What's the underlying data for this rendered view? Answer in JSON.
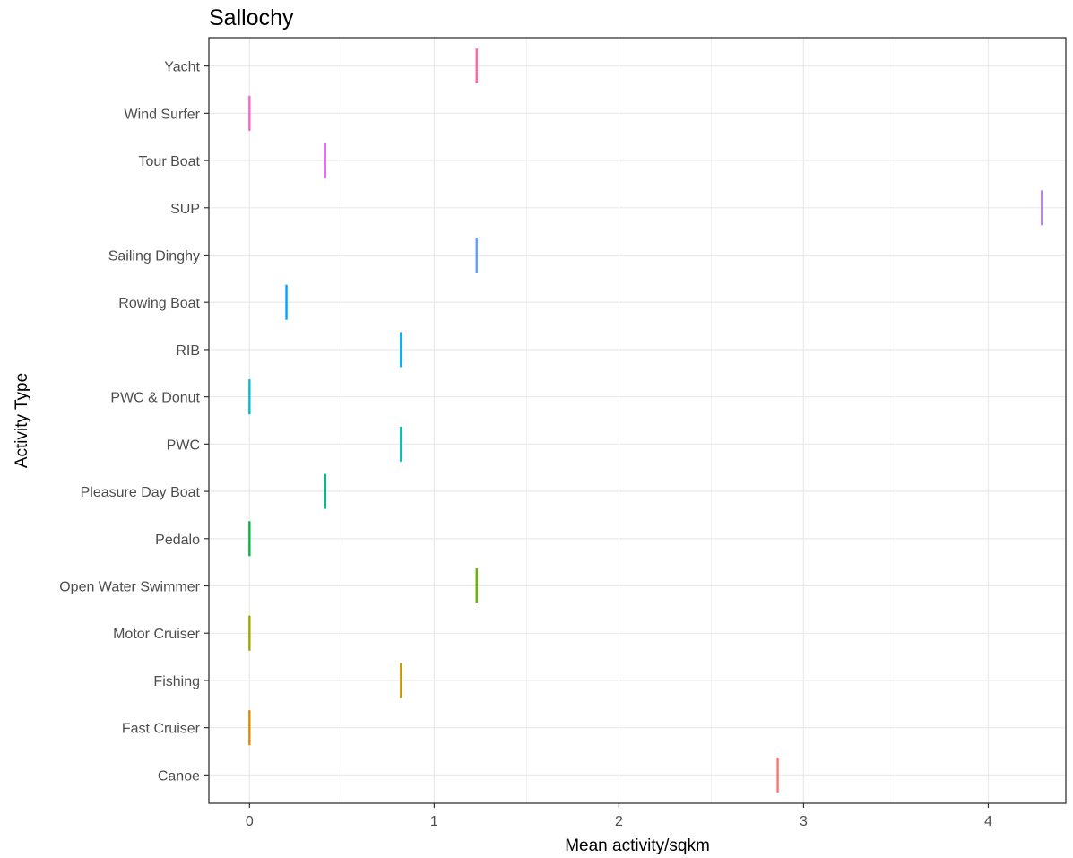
{
  "chart_data": {
    "type": "errorbar",
    "title": "Sallochy",
    "xlabel": "Mean activity/sqkm",
    "ylabel": "Activity Type",
    "xlim": [
      -0.22,
      4.42
    ],
    "x_ticks": [
      0,
      1,
      2,
      3,
      4
    ],
    "x_tick_labels": [
      "0",
      "1",
      "2",
      "3",
      "4"
    ],
    "grid": true,
    "legend": "none",
    "categories": [
      "Canoe",
      "Fast Cruiser",
      "Fishing",
      "Motor Cruiser",
      "Open Water Swimmer",
      "Pedalo",
      "Pleasure Day Boat",
      "PWC",
      "PWC & Donut",
      "RIB",
      "Rowing Boat",
      "Sailing Dinghy",
      "SUP",
      "Tour Boat",
      "Wind Surfer",
      "Yacht"
    ],
    "values": [
      2.86,
      0,
      0.82,
      0,
      1.23,
      0,
      0.41,
      0.82,
      0,
      0.82,
      0.2,
      1.23,
      4.29,
      0.41,
      0,
      1.23
    ],
    "colors": [
      "#F8766D",
      "#E58700",
      "#C99800",
      "#A3A500",
      "#6BB100",
      "#00BA38",
      "#00BF7D",
      "#00C0AF",
      "#00BCD8",
      "#00B0F6",
      "#00A2FF",
      "#619CFF",
      "#B983FF",
      "#E76BF3",
      "#FD61D1",
      "#FF67A4"
    ]
  }
}
